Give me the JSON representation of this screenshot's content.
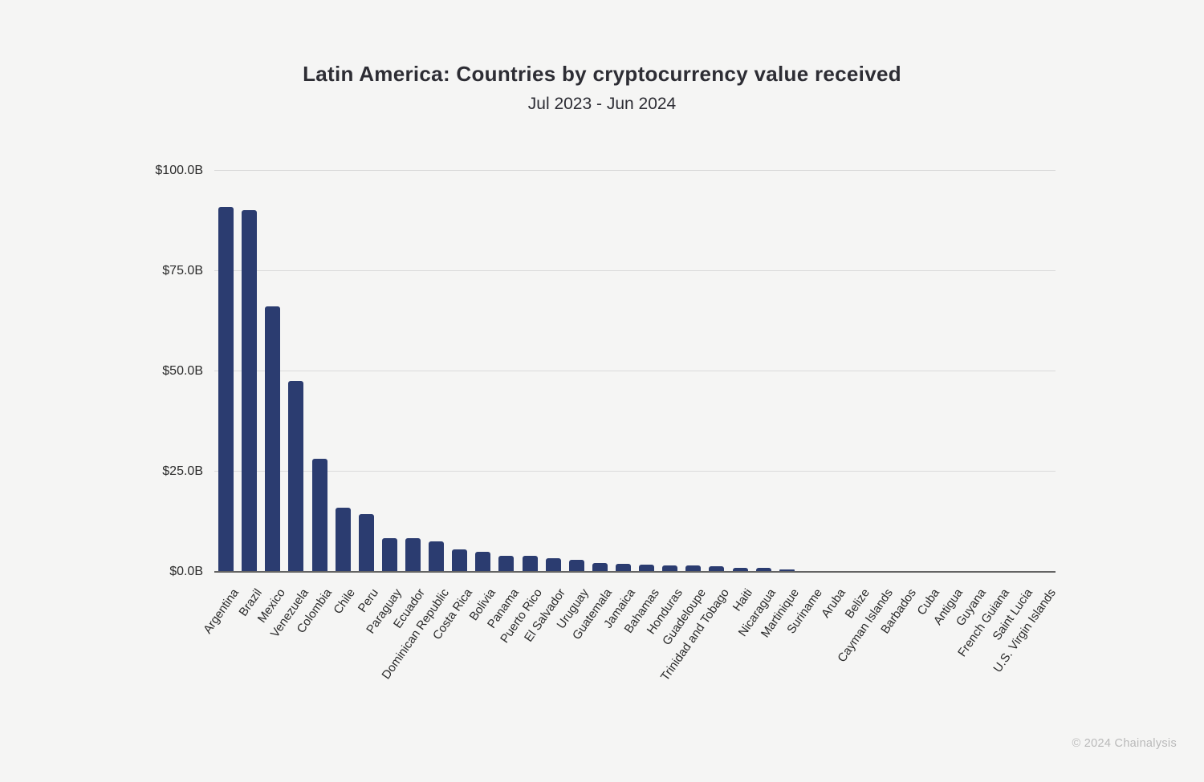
{
  "footer": {
    "copyright": "© 2024 Chainalysis"
  },
  "colors": {
    "background": "#f5f5f4",
    "bar": "#2b3c70",
    "gridline": "#dadada",
    "axis_line": "#646464",
    "title_text": "#2d2d34",
    "tick_text": "#2a2a2a",
    "copyright_text": "#b9b9b9"
  },
  "chart_data": {
    "type": "bar",
    "title": "Latin America: Countries by cryptocurrency value received",
    "subtitle": "Jul 2023 - Jun 2024",
    "xlabel": "",
    "ylabel": "",
    "ylim": [
      0,
      100
    ],
    "yticks": [
      0,
      25,
      50,
      75,
      100
    ],
    "ytick_labels": [
      "$0.0B",
      "$25.0B",
      "$50.0B",
      "$75.0B",
      "$100.0B"
    ],
    "grid": true,
    "legend": false,
    "value_unit": "billions USD",
    "categories": [
      "Argentina",
      "Brazil",
      "Mexico",
      "Venezuela",
      "Colombia",
      "Chile",
      "Peru",
      "Paraguay",
      "Ecuador",
      "Dominican Republic",
      "Costa Rica",
      "Bolivia",
      "Panama",
      "Puerto Rico",
      "El Salvador",
      "Uruguay",
      "Guatemala",
      "Jamaica",
      "Bahamas",
      "Honduras",
      "Guadeloupe",
      "Trinidad and Tobago",
      "Haiti",
      "Nicaragua",
      "Martinique",
      "Suriname",
      "Aruba",
      "Belize",
      "Cayman Islands",
      "Barbados",
      "Cuba",
      "Antigua",
      "Guyana",
      "French Guiana",
      "Saint Lucia",
      "U.S. Virgin Islands"
    ],
    "values": [
      91.0,
      90.2,
      66.2,
      47.6,
      28.1,
      16.0,
      14.3,
      8.4,
      8.3,
      7.5,
      5.5,
      4.9,
      4.0,
      3.9,
      3.4,
      2.9,
      2.1,
      1.9,
      1.7,
      1.6,
      1.6,
      1.3,
      0.9,
      0.9,
      0.5,
      0.15,
      0.1,
      0.08,
      0.06,
      0.05,
      0.05,
      0.04,
      0.03,
      0.03,
      0.02,
      0.02
    ]
  }
}
